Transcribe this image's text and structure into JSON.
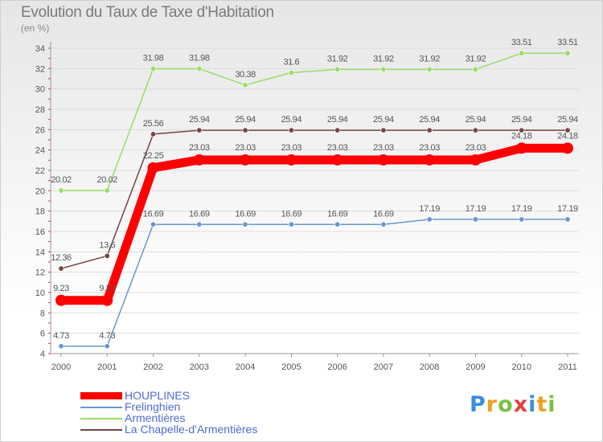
{
  "title": "Evolution du Taux de Taxe d'Habitation",
  "subtitle": "(en %)",
  "logo": "Proxiti",
  "chart_data": {
    "type": "line",
    "title": "Evolution du Taux de Taxe d'Habitation",
    "ylabel": "(en %)",
    "xlabel": "",
    "ylim": [
      4,
      34
    ],
    "y_ticks": [
      4,
      6,
      8,
      10,
      12,
      14,
      16,
      18,
      20,
      22,
      24,
      26,
      28,
      30,
      32,
      34
    ],
    "x": [
      "2000",
      "2001",
      "2002",
      "2003",
      "2004",
      "2005",
      "2006",
      "2007",
      "2008",
      "2009",
      "2010",
      "2011"
    ],
    "legend_position": "bottom-left",
    "series": [
      {
        "name": "HOUPLINES",
        "color": "#ff0000",
        "values": [
          9.23,
          9.23,
          22.25,
          23.03,
          23.03,
          23.03,
          23.03,
          23.03,
          23.03,
          23.03,
          24.18,
          24.18
        ],
        "labels": [
          "9.23",
          "9.23",
          "22.25",
          "23.03",
          "23.03",
          "23.03",
          "23.03",
          "23.03",
          "23.03",
          "23.03",
          "24.18",
          "24.18"
        ]
      },
      {
        "name": "Frelinghien",
        "color": "#6699cc",
        "values": [
          4.73,
          4.73,
          16.69,
          16.69,
          16.69,
          16.69,
          16.69,
          16.69,
          17.19,
          17.19,
          17.19,
          17.19
        ],
        "labels": [
          "4.73",
          "4.73",
          "16.69",
          "16.69",
          "16.69",
          "16.69",
          "16.69",
          "16.69",
          "17.19",
          "17.19",
          "17.19",
          "17.19"
        ]
      },
      {
        "name": "Armentières",
        "color": "#99dd66",
        "values": [
          20.02,
          20.02,
          31.98,
          31.98,
          30.38,
          31.6,
          31.92,
          31.92,
          31.92,
          31.92,
          33.51,
          33.51
        ],
        "labels": [
          "20.02",
          "20.02",
          "31.98",
          "31.98",
          "30.38",
          "31.6",
          "31.92",
          "31.92",
          "31.92",
          "31.92",
          "33.51",
          "33.51"
        ]
      },
      {
        "name": "La Chapelle-d'Armentières",
        "color": "#774444",
        "values": [
          12.36,
          13.6,
          25.56,
          25.94,
          25.94,
          25.94,
          25.94,
          25.94,
          25.94,
          25.94,
          25.94,
          25.94
        ],
        "labels": [
          "12.36",
          "13.6",
          "25.56",
          "25.94",
          "25.94",
          "25.94",
          "25.94",
          "25.94",
          "25.94",
          "25.94",
          "25.94",
          "25.94"
        ]
      }
    ]
  }
}
